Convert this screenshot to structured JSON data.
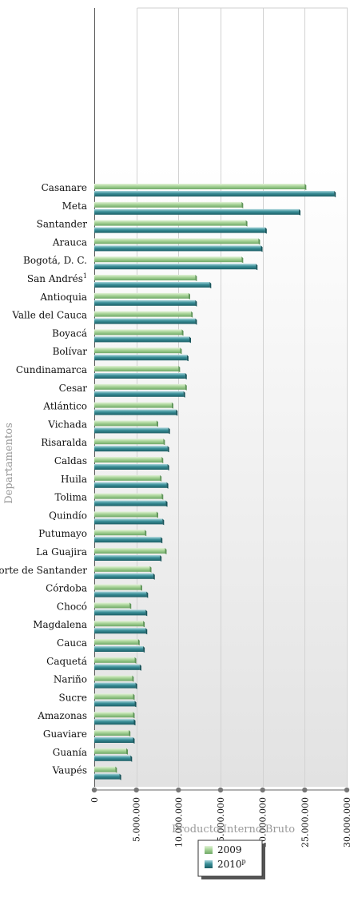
{
  "chart_data": {
    "type": "bar",
    "orientation": "horizontal",
    "xlabel": "Producto Interno Bruto",
    "ylabel": "Departamentos",
    "xlim": [
      0,
      30000000
    ],
    "xticks": [
      "0",
      "5.000.000",
      "10.000.000",
      "15.000.000",
      "20.000.000",
      "25.000.000",
      "30.000.000"
    ],
    "legend_position": "bottom-center",
    "grid": true,
    "categories": [
      "Casanare",
      "Meta",
      "Santander",
      "Arauca",
      "Bogotá, D. C.",
      "San Andrés",
      "Antioquia",
      "Valle del Cauca",
      "Boyacá",
      "Bolívar",
      "Cundinamarca",
      "Cesar",
      "Atlántico",
      "Vichada",
      "Risaralda",
      "Caldas",
      "Huila",
      "Tolima",
      "Quindío",
      "Putumayo",
      "La Guajira",
      "Norte de Santander",
      "Córdoba",
      "Chocó",
      "Magdalena",
      "Cauca",
      "Caquetá",
      "Nariño",
      "Sucre",
      "Amazonas",
      "Guaviare",
      "Guanía",
      "Vaupés"
    ],
    "category_superscripts": {
      "5": "1"
    },
    "series": [
      {
        "name": "2009",
        "color": "#9ccc8e",
        "values": [
          25000000,
          17500000,
          18000000,
          19500000,
          17500000,
          12000000,
          11200000,
          11500000,
          10400000,
          10200000,
          10000000,
          10800000,
          9200000,
          7400000,
          8200000,
          8000000,
          7800000,
          8000000,
          7400000,
          6000000,
          8400000,
          6600000,
          5500000,
          4200000,
          5800000,
          5200000,
          4800000,
          4500000,
          4600000,
          4600000,
          4100000,
          3800000,
          2500000
        ]
      },
      {
        "name": "2010",
        "name_superscript": "p",
        "color": "#2f8088",
        "values": [
          28500000,
          24300000,
          20300000,
          19800000,
          19200000,
          13700000,
          12000000,
          12000000,
          11300000,
          11000000,
          10800000,
          10600000,
          9700000,
          8800000,
          8700000,
          8700000,
          8600000,
          8500000,
          8100000,
          7900000,
          7800000,
          7000000,
          6200000,
          6100000,
          6100000,
          5800000,
          5400000,
          4900000,
          4800000,
          4700000,
          4600000,
          4300000,
          3000000
        ]
      }
    ]
  }
}
